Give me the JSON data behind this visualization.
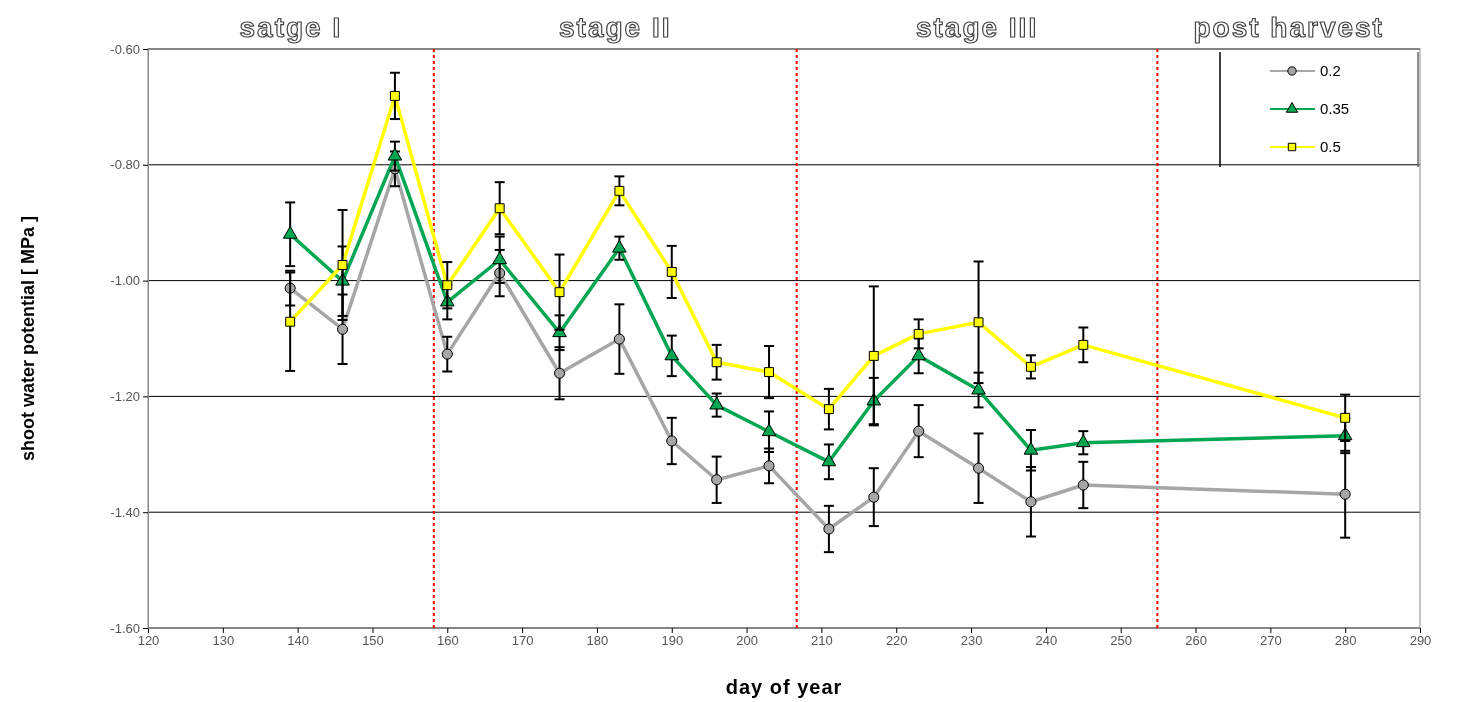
{
  "chart_data": {
    "type": "line",
    "xlabel": "day of year",
    "ylabel": "shoot water potential [ MPa ]",
    "x": [
      139,
      146,
      153,
      160,
      167,
      175,
      183,
      190,
      196,
      203,
      211,
      217,
      223,
      231,
      238,
      245,
      280
    ],
    "series": [
      {
        "name": "0.2",
        "color": "#a6a6a6",
        "marker": "circle",
        "values": [
          -1.013,
          -1.084,
          -0.807,
          -1.127,
          -0.987,
          -1.16,
          -1.101,
          -1.277,
          -1.344,
          -1.32,
          -1.429,
          -1.374,
          -1.26,
          -1.324,
          -1.382,
          -1.353,
          -1.369
        ],
        "errors": [
          0.03,
          0.06,
          0.03,
          0.03,
          0.04,
          0.045,
          0.06,
          0.04,
          0.04,
          0.03,
          0.04,
          0.05,
          0.045,
          0.06,
          0.06,
          0.04,
          0.075
        ]
      },
      {
        "name": "0.35",
        "color": "#00a651",
        "marker": "triangle",
        "values": [
          -0.92,
          -1.001,
          -0.785,
          -1.037,
          -0.964,
          -1.09,
          -0.944,
          -1.13,
          -1.215,
          -1.261,
          -1.313,
          -1.208,
          -1.13,
          -1.189,
          -1.293,
          -1.28,
          -1.268
        ],
        "errors": [
          0.055,
          0.06,
          0.025,
          0.03,
          0.04,
          0.03,
          0.02,
          0.035,
          0.02,
          0.035,
          0.03,
          0.04,
          0.03,
          0.03,
          0.035,
          0.02,
          0.03
        ]
      },
      {
        "name": "0.5",
        "color": "#ffff00",
        "marker": "square",
        "values": [
          -1.071,
          -0.973,
          -0.681,
          -1.008,
          -0.875,
          -1.02,
          -0.845,
          -0.985,
          -1.141,
          -1.158,
          -1.222,
          -1.13,
          -1.092,
          -1.072,
          -1.149,
          -1.111,
          -1.237
        ],
        "errors": [
          0.085,
          0.095,
          0.04,
          0.04,
          0.045,
          0.065,
          0.025,
          0.045,
          0.03,
          0.045,
          0.035,
          0.12,
          0.025,
          0.105,
          0.02,
          0.03,
          0.04
        ]
      }
    ],
    "xlim": [
      120,
      290
    ],
    "xticks": [
      120,
      130,
      140,
      150,
      160,
      170,
      180,
      190,
      200,
      210,
      220,
      230,
      240,
      250,
      260,
      270,
      280,
      290
    ],
    "ylim": [
      -1.6,
      -0.6
    ],
    "yticks": [
      {
        "value": -1.6,
        "label": "-1.60"
      },
      {
        "value": -1.4,
        "label": "-1.40"
      },
      {
        "value": -1.2,
        "label": "-1.20"
      },
      {
        "value": -1.0,
        "label": "-1.00"
      },
      {
        "value": -0.8,
        "label": "-0.80"
      },
      {
        "value": -0.6,
        "label": "-0.60"
      }
    ],
    "grid": "y",
    "legend": "top right",
    "line_style": "solid",
    "ref_lines": [
      {
        "axis": "x",
        "value": 158.2,
        "color": "#ff0000",
        "line_style": "dotted"
      },
      {
        "axis": "x",
        "value": 206.7,
        "color": "#ff0000",
        "line_style": "dotted"
      },
      {
        "axis": "x",
        "value": 254.9,
        "color": "#ff0000",
        "line_style": "dotted"
      }
    ],
    "annotations": [
      "satge I",
      "stage II",
      "stage III",
      "post harvest"
    ]
  }
}
